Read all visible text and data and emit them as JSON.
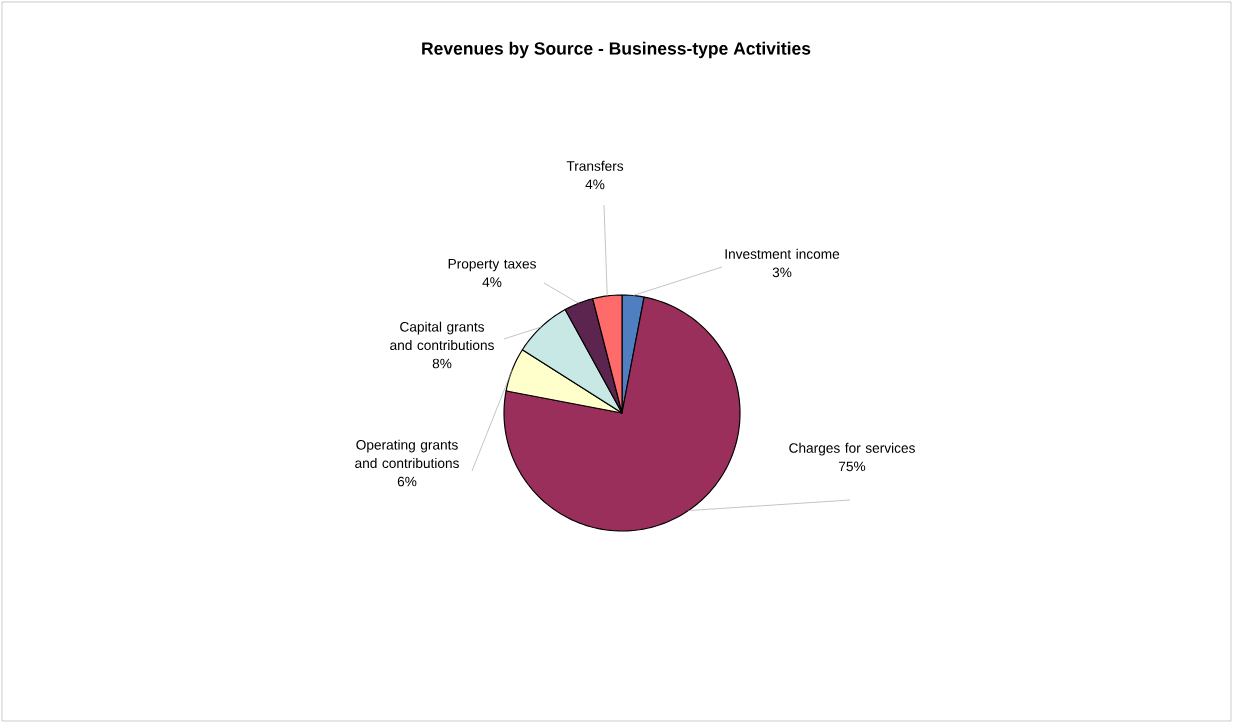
{
  "chart_data": {
    "type": "pie",
    "title": "Revenues by Source - Business-type Activities",
    "categories": [
      "Investment income",
      "Charges for services",
      "Operating grants and contributions",
      "Capital grants and contributions",
      "Property taxes",
      "Transfers"
    ],
    "values": [
      3,
      75,
      6,
      8,
      4,
      4
    ],
    "value_labels": [
      "3%",
      "75%",
      "6%",
      "8%",
      "4%",
      "4%"
    ],
    "colors": [
      "#4f7fc0",
      "#9b2f5b",
      "#ffffcc",
      "#c8e8e6",
      "#5c2550",
      "#ff6b6b"
    ]
  }
}
